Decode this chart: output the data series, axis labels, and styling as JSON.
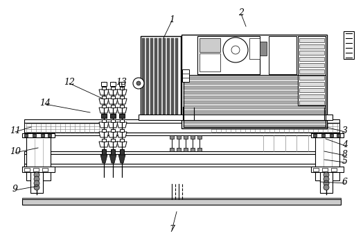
{
  "bg_color": "#ffffff",
  "line_color": "#000000",
  "gray_color": "#888888",
  "light_gray": "#cccccc",
  "dark_gray": "#333333",
  "figsize": [
    5.24,
    3.53
  ],
  "dpi": 100,
  "label_data": [
    [
      "1",
      248,
      28,
      236,
      55
    ],
    [
      "2",
      348,
      18,
      355,
      38
    ],
    [
      "3",
      498,
      188,
      470,
      183
    ],
    [
      "4",
      498,
      208,
      470,
      200
    ],
    [
      "5",
      498,
      232,
      468,
      230
    ],
    [
      "6",
      498,
      262,
      462,
      262
    ],
    [
      "7",
      248,
      330,
      255,
      305
    ],
    [
      "8",
      498,
      222,
      468,
      218
    ],
    [
      "9",
      22,
      272,
      55,
      268
    ],
    [
      "10",
      22,
      218,
      55,
      213
    ],
    [
      "11",
      22,
      188,
      45,
      183
    ],
    [
      "12",
      100,
      118,
      148,
      142
    ],
    [
      "13",
      175,
      118,
      178,
      130
    ],
    [
      "14",
      65,
      148,
      130,
      162
    ]
  ]
}
